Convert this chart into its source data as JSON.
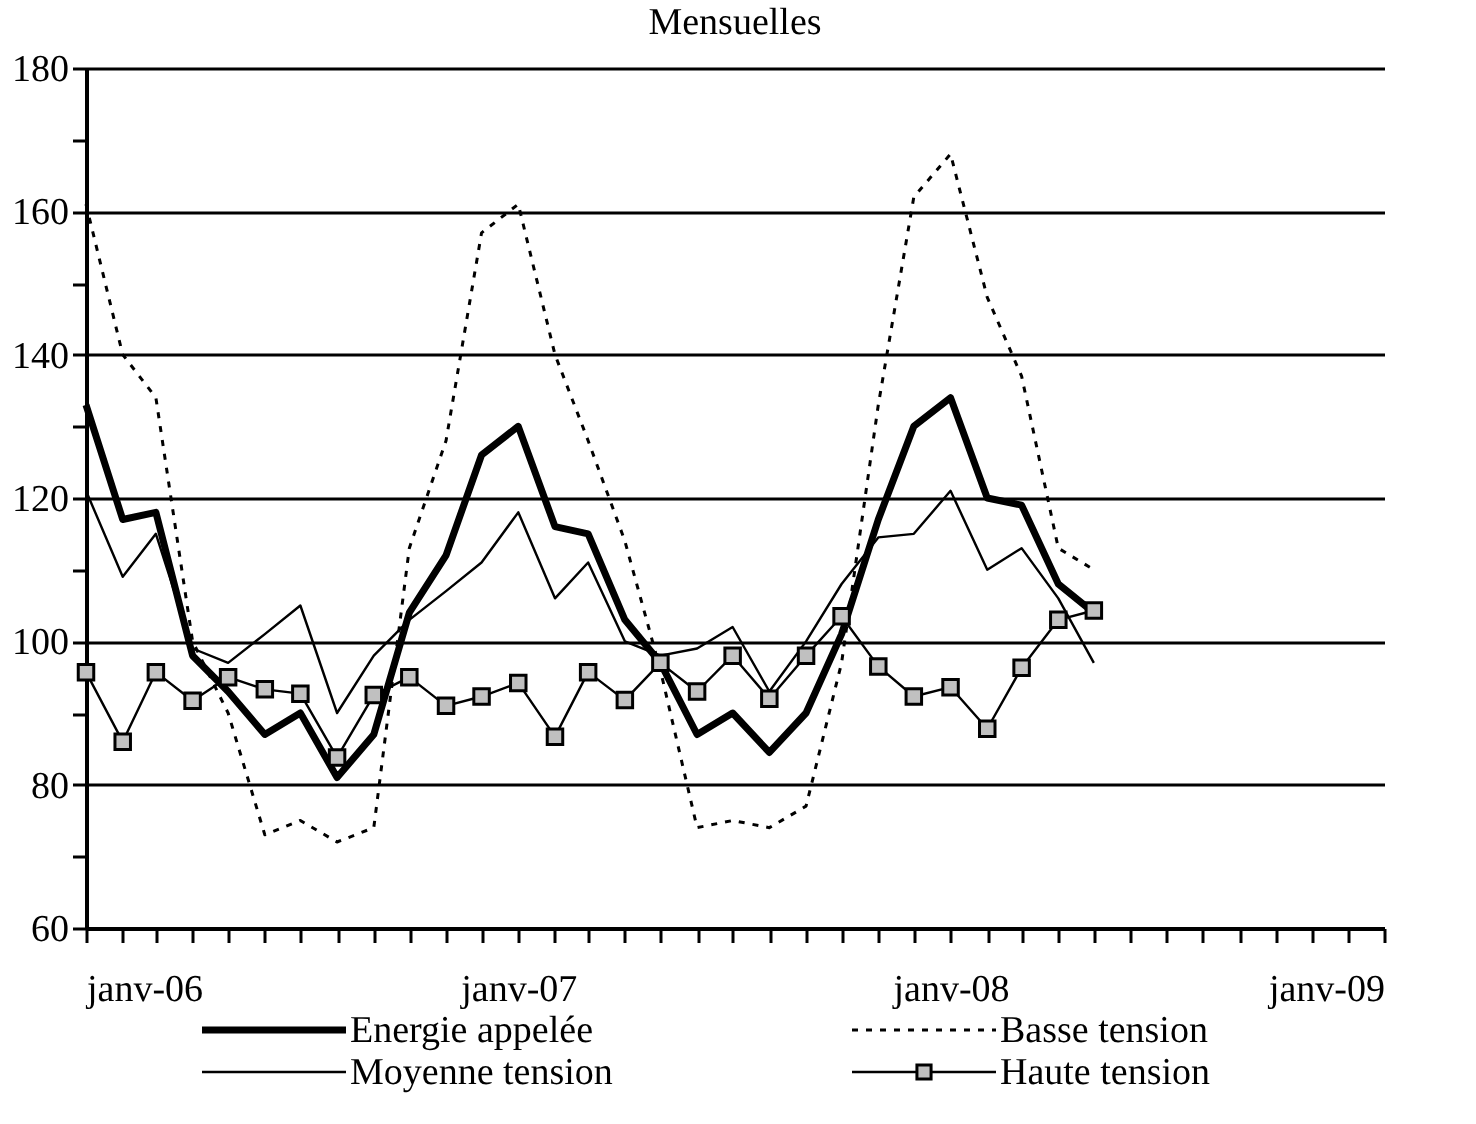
{
  "chart_data": {
    "type": "line",
    "title": "Mensuelles",
    "x": [
      "2006-01",
      "2006-02",
      "2006-03",
      "2006-04",
      "2006-05",
      "2006-06",
      "2006-07",
      "2006-08",
      "2006-09",
      "2006-10",
      "2006-11",
      "2006-12",
      "2007-01",
      "2007-02",
      "2007-03",
      "2007-04",
      "2007-05",
      "2007-06",
      "2007-07",
      "2007-08",
      "2007-09",
      "2007-10",
      "2007-11",
      "2007-12",
      "2008-01",
      "2008-02",
      "2008-03",
      "2008-04",
      "2008-05"
    ],
    "series": [
      {
        "name": "Energie appelée",
        "color": "#000000",
        "line_style": "solid",
        "marker": "none",
        "values": [
          133,
          117,
          118,
          98,
          93,
          87,
          90,
          81,
          87,
          104,
          112,
          126,
          130,
          116,
          115,
          103,
          97,
          87,
          90,
          84.5,
          90,
          101,
          117,
          130,
          134,
          120,
          119,
          108,
          104
        ]
      },
      {
        "name": "Basse tension",
        "color": "#000000",
        "line_style": "dotted",
        "marker": "none",
        "values": [
          161,
          140,
          134,
          100,
          90,
          73,
          75,
          72,
          74,
          113,
          128,
          157,
          161,
          140,
          128,
          114,
          96,
          74,
          75,
          74,
          77,
          97,
          133,
          162,
          168,
          148,
          137,
          113,
          110
        ]
      },
      {
        "name": "Moyenne tension",
        "color": "#000000",
        "line_style": "solid",
        "marker": "none",
        "values": [
          121,
          109,
          115,
          99,
          97,
          101,
          105,
          90,
          98,
          103,
          107,
          111,
          118,
          106,
          111,
          100,
          98,
          99,
          102,
          93,
          100,
          108,
          114.5,
          115,
          121,
          110,
          113,
          106,
          97
        ]
      },
      {
        "name": "Haute tension",
        "color": "#000000",
        "line_style": "solid",
        "marker": "square",
        "values": [
          95.7,
          86,
          95.7,
          91.7,
          95,
          93.3,
          92.7,
          83.8,
          92.5,
          95,
          91,
          92.3,
          94.2,
          86.7,
          95.7,
          91.8,
          97,
          93,
          98,
          92,
          98,
          103.5,
          96.5,
          92.3,
          93.6,
          87.8,
          96.3,
          103,
          104.3
        ]
      }
    ],
    "xlim": [
      "2006-01",
      "2009-01"
    ],
    "xticks": [
      {
        "value": "2006-01",
        "label": "janv-06"
      },
      {
        "value": "2006-02",
        "label": null
      },
      {
        "value": "2006-03",
        "label": null
      },
      {
        "value": "2006-04",
        "label": null
      },
      {
        "value": "2006-05",
        "label": null
      },
      {
        "value": "2006-06",
        "label": null
      },
      {
        "value": "2006-07",
        "label": null
      },
      {
        "value": "2006-08",
        "label": null
      },
      {
        "value": "2006-09",
        "label": null
      },
      {
        "value": "2006-10",
        "label": null
      },
      {
        "value": "2006-11",
        "label": null
      },
      {
        "value": "2006-12",
        "label": null
      },
      {
        "value": "2007-01",
        "label": "janv-07"
      },
      {
        "value": "2007-02",
        "label": null
      },
      {
        "value": "2007-03",
        "label": null
      },
      {
        "value": "2007-04",
        "label": null
      },
      {
        "value": "2007-05",
        "label": null
      },
      {
        "value": "2007-06",
        "label": null
      },
      {
        "value": "2007-07",
        "label": null
      },
      {
        "value": "2007-08",
        "label": null
      },
      {
        "value": "2007-09",
        "label": null
      },
      {
        "value": "2007-10",
        "label": null
      },
      {
        "value": "2007-11",
        "label": null
      },
      {
        "value": "2007-12",
        "label": null
      },
      {
        "value": "2008-01",
        "label": "janv-08"
      },
      {
        "value": "2008-02",
        "label": null
      },
      {
        "value": "2008-03",
        "label": null
      },
      {
        "value": "2008-04",
        "label": null
      },
      {
        "value": "2008-05",
        "label": null
      },
      {
        "value": "2008-06",
        "label": null
      },
      {
        "value": "2008-07",
        "label": null
      },
      {
        "value": "2008-08",
        "label": null
      },
      {
        "value": "2008-09",
        "label": null
      },
      {
        "value": "2008-10",
        "label": null
      },
      {
        "value": "2008-11",
        "label": null
      },
      {
        "value": "2008-12",
        "label": null
      },
      {
        "value": "2009-01",
        "label": "janv-09"
      }
    ],
    "ylim": [
      60,
      180
    ],
    "yticks": [
      60,
      {
        "value": 70,
        "label": null
      },
      80,
      {
        "value": 90,
        "label": null
      },
      100,
      {
        "value": 110,
        "label": null
      },
      120,
      {
        "value": 130,
        "label": null
      },
      140,
      {
        "value": 150,
        "label": null
      },
      160,
      {
        "value": 170,
        "label": null
      },
      180
    ],
    "grid": "y",
    "legend": "bottom"
  }
}
